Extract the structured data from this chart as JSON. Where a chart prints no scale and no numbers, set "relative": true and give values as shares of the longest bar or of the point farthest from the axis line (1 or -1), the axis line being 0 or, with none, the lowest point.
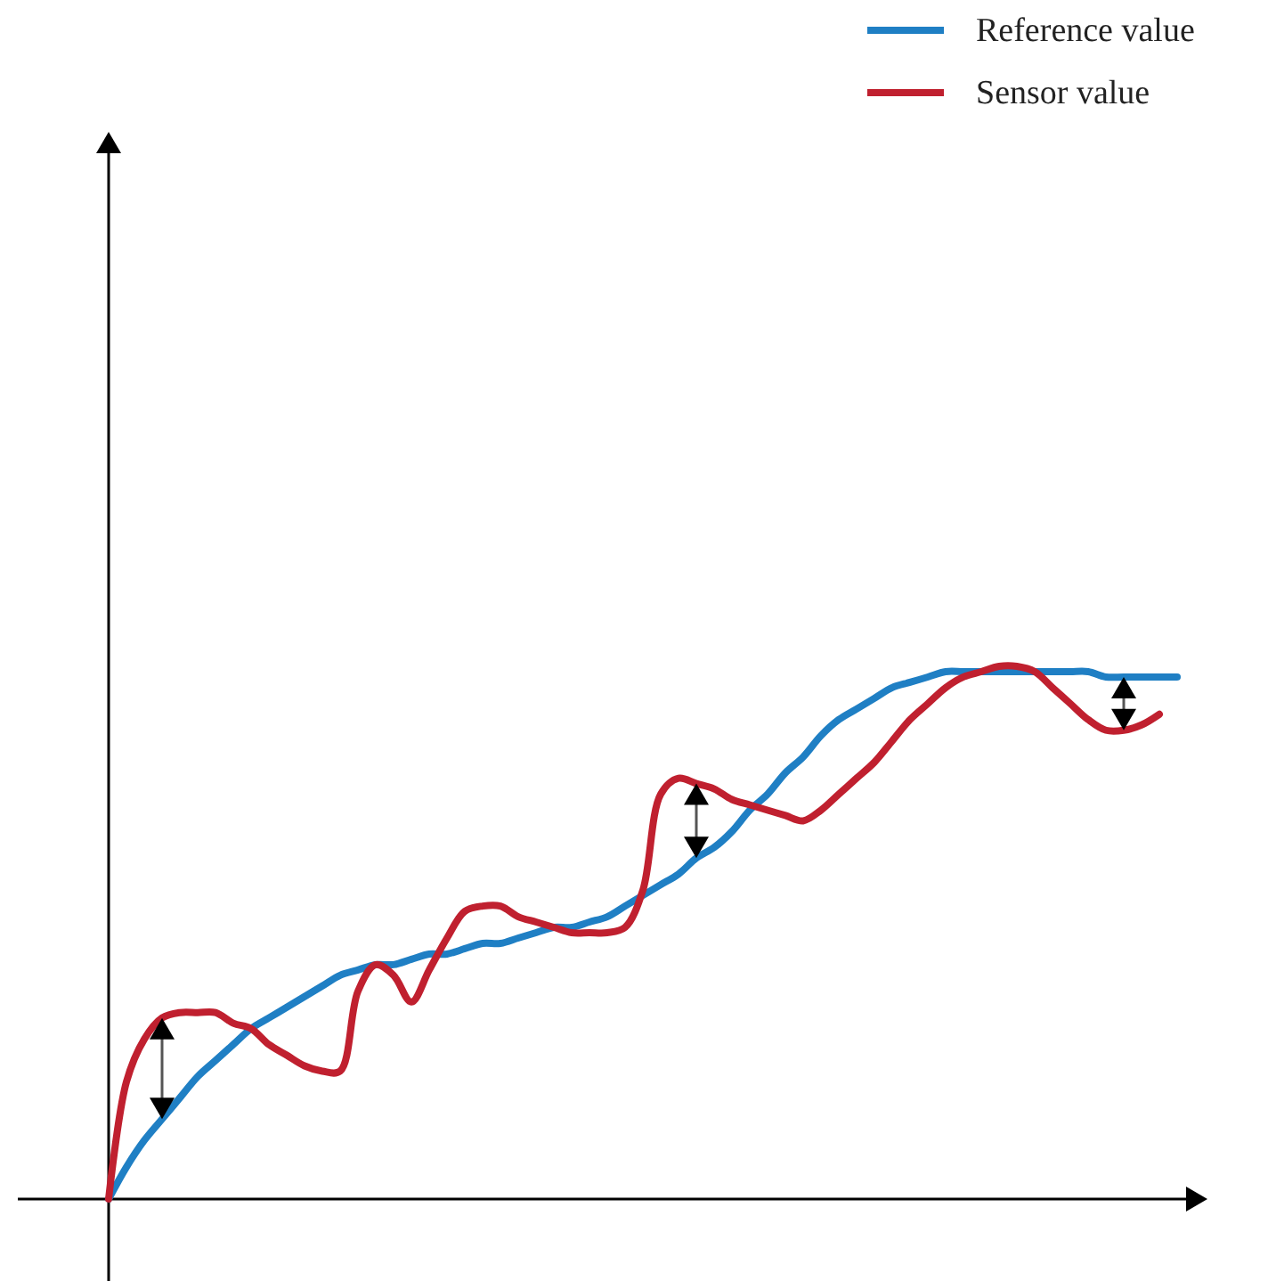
{
  "chart_data": {
    "type": "line",
    "relative": true,
    "legend": "top right",
    "categories": [
      null,
      null,
      null,
      null,
      null,
      null,
      null,
      null,
      null,
      null,
      null,
      null,
      null,
      null,
      null,
      null,
      null,
      null,
      null,
      null,
      null,
      null,
      null,
      null,
      null,
      null,
      null,
      null,
      null,
      null,
      null,
      null,
      null,
      null,
      null,
      null,
      null,
      null,
      null,
      null,
      null,
      null,
      null,
      null,
      null,
      null,
      null,
      null,
      null,
      null,
      null,
      null,
      null,
      null,
      null,
      null,
      null,
      null,
      null,
      null,
      null
    ],
    "series": [
      {
        "name": "Reference value",
        "color": "#1f7fc4",
        "values": [
          0,
          0.06,
          0.11,
          0.15,
          0.19,
          0.23,
          0.26,
          0.29,
          0.32,
          0.34,
          0.36,
          0.38,
          0.4,
          0.42,
          0.43,
          0.44,
          0.44,
          0.45,
          0.46,
          0.46,
          0.47,
          0.48,
          0.48,
          0.49,
          0.5,
          0.51,
          0.51,
          0.52,
          0.53,
          0.55,
          0.57,
          0.59,
          0.61,
          0.64,
          0.66,
          0.69,
          0.73,
          0.76,
          0.8,
          0.83,
          0.87,
          0.9,
          0.92,
          0.94,
          0.96,
          0.97,
          0.98,
          0.99,
          0.99,
          0.99,
          0.99,
          0.99,
          0.99,
          0.99,
          0.99,
          0.99,
          0.98,
          0.98,
          0.98,
          0.98,
          0.98
        ]
      },
      {
        "name": "Sensor value",
        "color": "#c0202f",
        "values": [
          0,
          0.22,
          0.3,
          0.34,
          0.35,
          0.35,
          0.35,
          0.33,
          0.32,
          0.29,
          0.27,
          0.25,
          0.24,
          0.24,
          0.39,
          0.44,
          0.42,
          0.37,
          0.43,
          0.49,
          0.54,
          0.55,
          0.55,
          0.53,
          0.52,
          0.51,
          0.5,
          0.5,
          0.5,
          0.51,
          0.58,
          0.76,
          0.79,
          0.78,
          0.77,
          0.75,
          0.74,
          0.73,
          0.72,
          0.71,
          0.73,
          0.76,
          0.79,
          0.82,
          0.86,
          0.9,
          0.93,
          0.96,
          0.98,
          0.99,
          1.0,
          1.0,
          0.99,
          0.96,
          0.93,
          0.9,
          0.88,
          0.88,
          0.89,
          0.91,
          null
        ]
      }
    ]
  }
}
